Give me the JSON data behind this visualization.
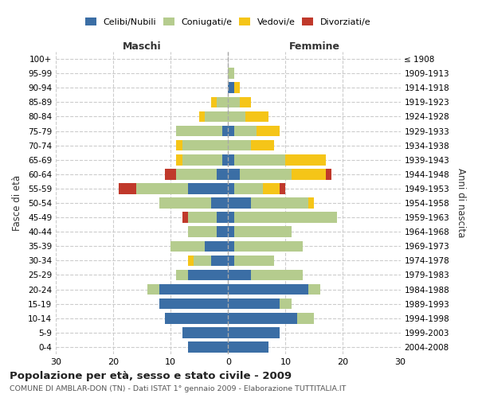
{
  "age_groups": [
    "0-4",
    "5-9",
    "10-14",
    "15-19",
    "20-24",
    "25-29",
    "30-34",
    "35-39",
    "40-44",
    "45-49",
    "50-54",
    "55-59",
    "60-64",
    "65-69",
    "70-74",
    "75-79",
    "80-84",
    "85-89",
    "90-94",
    "95-99",
    "100+"
  ],
  "birth_years": [
    "2004-2008",
    "1999-2003",
    "1994-1998",
    "1989-1993",
    "1984-1988",
    "1979-1983",
    "1974-1978",
    "1969-1973",
    "1964-1968",
    "1959-1963",
    "1954-1958",
    "1949-1953",
    "1944-1948",
    "1939-1943",
    "1934-1938",
    "1929-1933",
    "1924-1928",
    "1919-1923",
    "1914-1918",
    "1909-1913",
    "≤ 1908"
  ],
  "maschi": {
    "celibi": [
      7,
      8,
      11,
      12,
      12,
      7,
      3,
      4,
      2,
      2,
      3,
      7,
      2,
      1,
      0,
      1,
      0,
      0,
      0,
      0,
      0
    ],
    "coniugati": [
      0,
      0,
      0,
      0,
      2,
      2,
      3,
      6,
      5,
      5,
      9,
      9,
      7,
      7,
      8,
      8,
      4,
      2,
      0,
      0,
      0
    ],
    "vedovi": [
      0,
      0,
      0,
      0,
      0,
      0,
      1,
      0,
      0,
      0,
      0,
      0,
      0,
      1,
      1,
      0,
      1,
      1,
      0,
      0,
      0
    ],
    "divorziati": [
      0,
      0,
      0,
      0,
      0,
      0,
      0,
      0,
      0,
      1,
      0,
      3,
      2,
      0,
      0,
      0,
      0,
      0,
      0,
      0,
      0
    ]
  },
  "femmine": {
    "nubili": [
      7,
      9,
      12,
      9,
      14,
      4,
      1,
      1,
      1,
      1,
      4,
      1,
      2,
      1,
      0,
      1,
      0,
      0,
      1,
      0,
      0
    ],
    "coniugate": [
      0,
      0,
      3,
      2,
      2,
      9,
      7,
      12,
      10,
      18,
      10,
      5,
      9,
      9,
      4,
      4,
      3,
      2,
      0,
      1,
      0
    ],
    "vedove": [
      0,
      0,
      0,
      0,
      0,
      0,
      0,
      0,
      0,
      0,
      1,
      3,
      6,
      7,
      4,
      4,
      4,
      2,
      1,
      0,
      0
    ],
    "divorziate": [
      0,
      0,
      0,
      0,
      0,
      0,
      0,
      0,
      0,
      0,
      0,
      1,
      1,
      0,
      0,
      0,
      0,
      0,
      0,
      0,
      0
    ]
  },
  "colors": {
    "celibi_nubili": "#3b6ea5",
    "coniugati": "#b5cc8e",
    "vedovi": "#f5c518",
    "divorziati": "#c0392b"
  },
  "xlim": 30,
  "title": "Popolazione per età, sesso e stato civile - 2009",
  "subtitle": "COMUNE DI AMBLAR-DON (TN) - Dati ISTAT 1° gennaio 2009 - Elaborazione TUTTITALIA.IT",
  "ylabel_left": "Fasce di età",
  "ylabel_right": "Anni di nascita"
}
